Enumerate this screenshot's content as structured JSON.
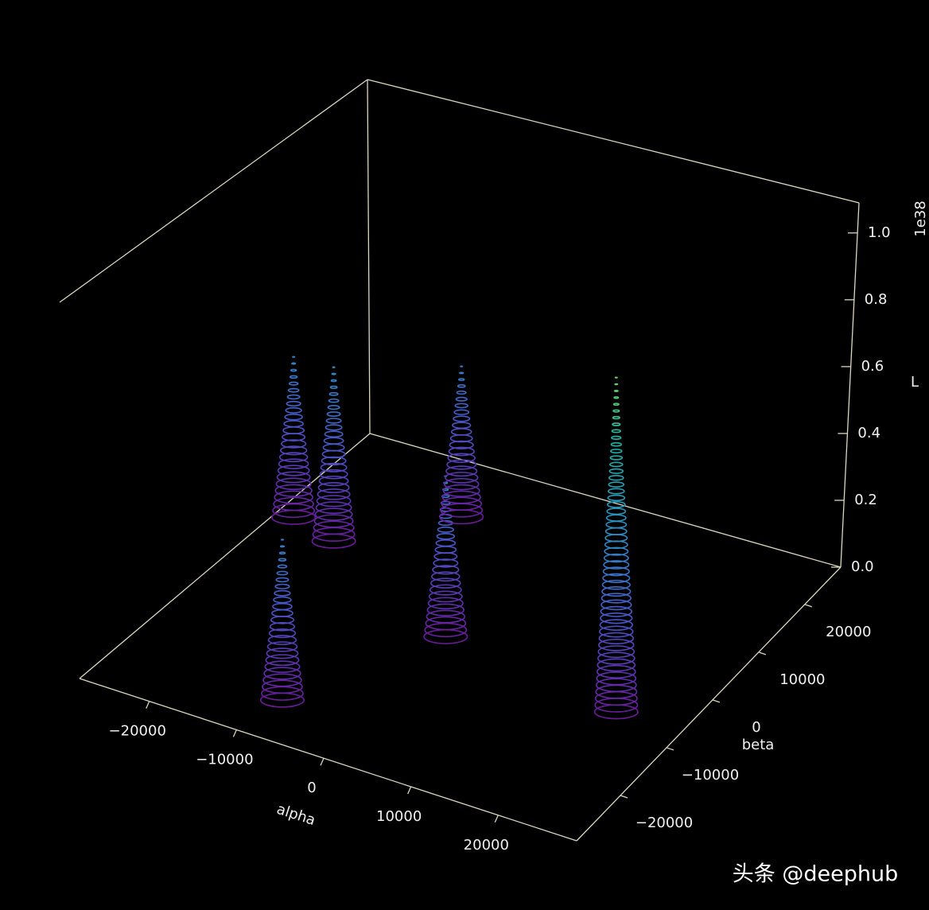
{
  "chart_data": {
    "type": "contour3d",
    "xlabel": "alpha",
    "ylabel": "beta",
    "zlabel": "L",
    "z_offset_label": "1e38",
    "watermark": "头条 @deephub",
    "x": [
      -8500,
      400,
      21600,
      -8300,
      -17400,
      -22900
    ],
    "y": [
      -22400,
      -3800,
      -6900,
      16100,
      5600,
      7300
    ],
    "values": [
      0.48,
      0.48,
      1.0,
      0.45,
      0.52,
      0.48
    ],
    "xlim": [
      -28000,
      29000
    ],
    "ylim": [
      -29500,
      27800
    ],
    "zlim": [
      0,
      1.09
    ],
    "xticks": [
      {
        "value": -20000,
        "label": "−20000"
      },
      {
        "value": -10000,
        "label": "−10000"
      },
      0,
      10000,
      20000
    ],
    "yticks": [
      {
        "value": -20000,
        "label": "−20000"
      },
      {
        "value": -10000,
        "label": "−10000"
      },
      0,
      10000,
      20000
    ],
    "zticks": [
      {
        "value": 0,
        "label": "0.0"
      },
      0.2,
      0.4,
      0.6,
      0.8,
      {
        "value": 1,
        "label": "1.0"
      }
    ],
    "colormap": [
      "#6a1b9a",
      "#4a55c8",
      "#2b8fc4",
      "#1fb3a6",
      "#9bd93c"
    ]
  }
}
